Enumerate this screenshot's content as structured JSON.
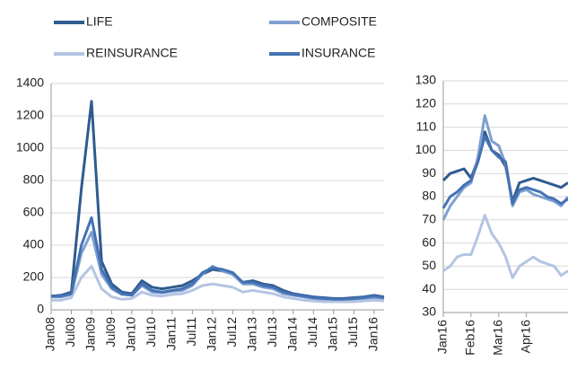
{
  "chart_data": [
    {
      "type": "line",
      "categories": [
        "Jan08",
        null,
        "Jul08",
        null,
        "Jan09",
        null,
        "Jul09",
        null,
        "Jan10",
        null,
        "Jul10",
        null,
        "Jan11",
        null,
        "Jul11",
        null,
        "Jan12",
        null,
        "Jul12",
        null,
        "Jan13",
        null,
        "Jul13",
        null,
        "Jan14",
        null,
        "Jul14",
        null,
        "Jan15",
        null,
        "Jul15",
        null,
        "Jan16",
        null
      ],
      "series": [
        {
          "name": "LIFE",
          "color": "#2f5b8f",
          "values": [
            85,
            90,
            110,
            750,
            1290,
            300,
            160,
            110,
            100,
            180,
            140,
            130,
            140,
            150,
            180,
            220,
            250,
            240,
            220,
            170,
            180,
            160,
            150,
            120,
            100,
            90,
            80,
            75,
            70,
            70,
            75,
            80,
            90,
            80
          ]
        },
        {
          "name": "COMPOSITE",
          "color": "#7f9fd0",
          "values": [
            80,
            80,
            95,
            350,
            480,
            220,
            130,
            95,
            90,
            150,
            110,
            105,
            115,
            120,
            150,
            220,
            270,
            240,
            220,
            160,
            160,
            140,
            130,
            100,
            90,
            80,
            70,
            65,
            60,
            60,
            65,
            70,
            75,
            70
          ]
        },
        {
          "name": "REINSURANCE",
          "color": "#b4c4e3",
          "values": [
            60,
            60,
            75,
            200,
            270,
            130,
            80,
            65,
            70,
            110,
            90,
            85,
            95,
            100,
            120,
            150,
            160,
            150,
            140,
            110,
            120,
            110,
            100,
            80,
            70,
            60,
            55,
            50,
            50,
            50,
            50,
            55,
            60,
            55
          ]
        },
        {
          "name": "INSURANCE",
          "color": "#4472b4",
          "values": [
            85,
            85,
            100,
            400,
            570,
            250,
            140,
            100,
            90,
            160,
            120,
            110,
            120,
            130,
            160,
            230,
            260,
            250,
            230,
            170,
            170,
            150,
            140,
            110,
            95,
            85,
            75,
            70,
            65,
            65,
            70,
            75,
            85,
            75
          ]
        }
      ],
      "ylim": [
        0,
        1400
      ],
      "yticks": [
        0,
        200,
        400,
        600,
        800,
        1000,
        1200,
        1400
      ],
      "grid": true
    },
    {
      "type": "line",
      "categories": [
        "Jan16",
        null,
        null,
        null,
        "Feb16",
        null,
        null,
        null,
        "Mar16",
        null,
        null,
        null,
        "Apr16",
        null,
        null,
        null,
        null,
        null,
        null
      ],
      "series": [
        {
          "color": "#2f5b8f",
          "values": [
            87,
            90,
            91,
            92,
            88,
            96,
            108,
            100,
            98,
            93,
            78,
            86,
            87,
            88,
            87,
            86,
            85,
            84,
            86
          ]
        },
        {
          "color": "#7f9fd0",
          "values": [
            70,
            76,
            80,
            84,
            86,
            97,
            115,
            104,
            102,
            94,
            76,
            82,
            83,
            81,
            80,
            79,
            78,
            76,
            80
          ]
        },
        {
          "color": "#b4c4e3",
          "values": [
            48,
            50,
            54,
            55,
            55,
            63,
            72,
            64,
            60,
            54,
            45,
            50,
            52,
            54,
            52,
            51,
            50,
            46,
            48
          ]
        },
        {
          "color": "#4472b4",
          "values": [
            75,
            80,
            82,
            85,
            87,
            95,
            106,
            100,
            97,
            95,
            77,
            83,
            84,
            83,
            82,
            80,
            79,
            77,
            79
          ]
        }
      ],
      "ylim": [
        30,
        130
      ],
      "yticks": [
        30,
        40,
        50,
        60,
        70,
        80,
        90,
        100,
        110,
        120,
        130
      ],
      "grid": true
    }
  ]
}
